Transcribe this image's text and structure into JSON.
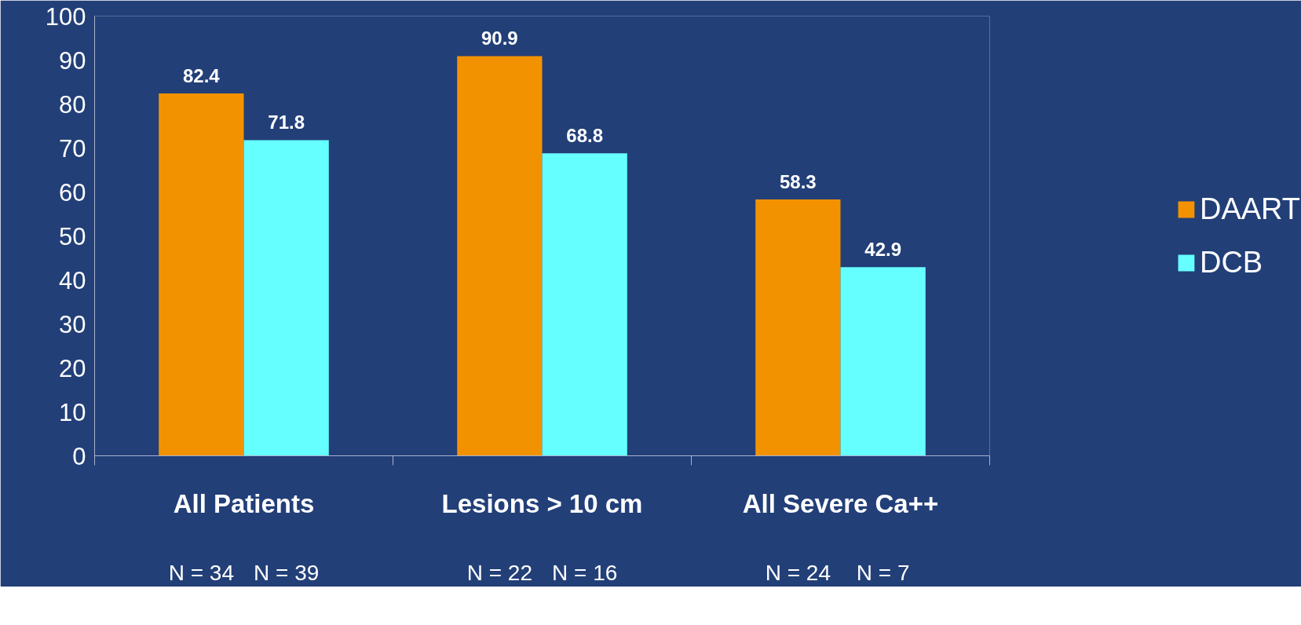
{
  "chart_data": {
    "type": "bar",
    "categories": [
      "All Patients",
      "Lesions > 10 cm",
      "All Severe Ca++"
    ],
    "series": [
      {
        "name": "DAART",
        "color": "#f39200",
        "values": [
          82.4,
          90.9,
          58.3
        ]
      },
      {
        "name": "DCB",
        "color": "#66ffff",
        "values": [
          71.8,
          68.8,
          42.9
        ]
      }
    ],
    "ylim": [
      0,
      100
    ],
    "yticks": [
      0,
      10,
      20,
      30,
      40,
      50,
      60,
      70,
      80,
      90,
      100
    ],
    "grid": false,
    "legend": "right",
    "data_labels": true,
    "annotations": [
      "N = 34",
      "N = 39",
      "N = 22",
      "N = 16",
      "N = 24",
      "N = 7"
    ]
  }
}
